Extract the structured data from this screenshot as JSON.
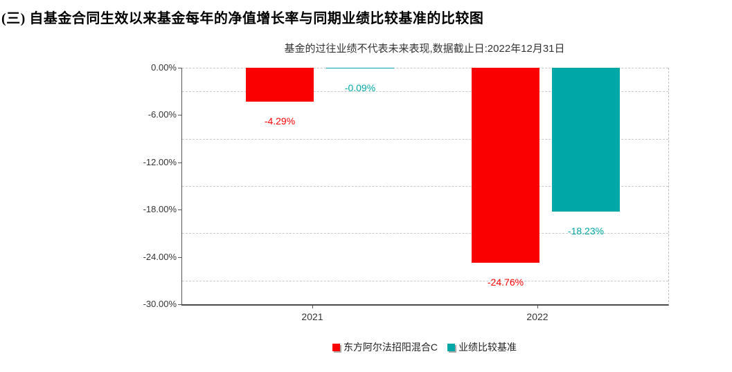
{
  "page": {
    "heading": "(三) 自基金合同生效以来基金每年的净值增长率与同期业绩比较基准的比较图"
  },
  "chart_data": {
    "type": "bar",
    "title": "基金的过往业绩不代表未来表现,数据截止日:2022年12月31日",
    "categories": [
      "2021",
      "2022"
    ],
    "series": [
      {
        "name": "东方阿尔法招阳混合C",
        "color": "#fb0000",
        "values": [
          -4.29,
          -24.76
        ],
        "labels": [
          "-4.29%",
          "-24.76%"
        ]
      },
      {
        "name": "业绩比较基准",
        "color": "#00a7a7",
        "values": [
          -0.09,
          -18.23
        ],
        "labels": [
          "-0.09%",
          "-18.23%"
        ]
      }
    ],
    "y_ticks": [
      "0.00%",
      "-6.00%",
      "-12.00%",
      "-18.00%",
      "-24.00%",
      "-30.00%"
    ],
    "ylim": [
      -30,
      0
    ],
    "y_major_step": 6,
    "grid": "dashed, minor lines at 3% steps",
    "legend_position": "bottom",
    "colors": {
      "fund": "#fb0000",
      "benchmark": "#00a7a7",
      "axis_text": "#333333",
      "gridline": "#c8c8c8"
    }
  }
}
